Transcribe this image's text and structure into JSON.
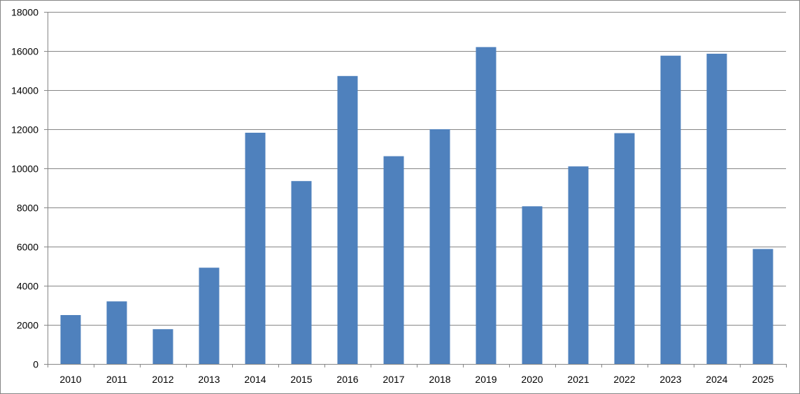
{
  "chart_data": {
    "type": "bar",
    "title": "",
    "xlabel": "",
    "ylabel": "",
    "categories": [
      "2010",
      "2011",
      "2012",
      "2013",
      "2014",
      "2015",
      "2016",
      "2017",
      "2018",
      "2019",
      "2020",
      "2021",
      "2022",
      "2023",
      "2024",
      "2025"
    ],
    "series": [
      {
        "values": [
          2500,
          3200,
          1780,
          4920,
          11820,
          9350,
          14720,
          10620,
          12000,
          16200,
          8060,
          10100,
          11800,
          15760,
          15860,
          5880
        ]
      }
    ],
    "ylim": [
      0,
      18000
    ],
    "yticks": [
      0,
      2000,
      4000,
      6000,
      8000,
      10000,
      12000,
      14000,
      16000,
      18000
    ],
    "ytick_labels": [
      "0",
      "2000",
      "4000",
      "6000",
      "8000",
      "10000",
      "12000",
      "14000",
      "16000",
      "18000"
    ],
    "grid": true,
    "legend": "none",
    "colors": {
      "bar": "#4F81BD",
      "gridline": "#868686",
      "axis": "#868686",
      "text": "#000000",
      "frame": "#868686"
    }
  }
}
